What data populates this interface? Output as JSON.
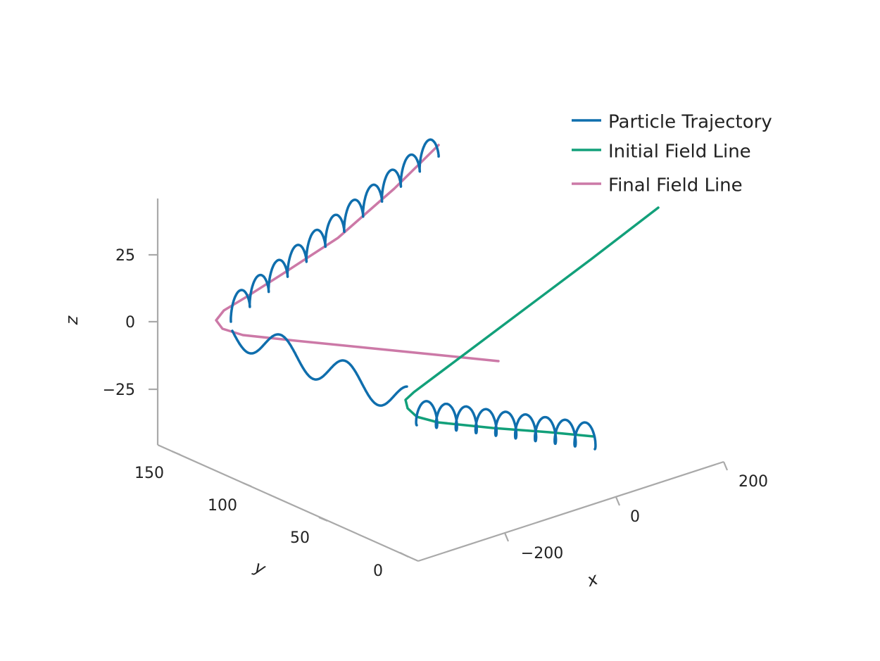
{
  "chart_data": {
    "type": "line",
    "title": "",
    "axes": {
      "x": {
        "label": "x",
        "ticks": [
          "−200",
          "0",
          "200"
        ],
        "range": [
          -300,
          300
        ]
      },
      "y": {
        "label": "y",
        "ticks": [
          "0",
          "50",
          "100",
          "150"
        ],
        "range": [
          -10,
          170
        ]
      },
      "z": {
        "label": "z",
        "ticks": [
          "−25",
          "0",
          "25"
        ],
        "range": [
          -45,
          45
        ]
      }
    },
    "grid": false,
    "legend_position": "top-right",
    "series": [
      {
        "name": "Particle Trajectory",
        "color": "#0f6ead"
      },
      {
        "name": "Initial Field Line",
        "color": "#12a07a"
      },
      {
        "name": "Final Field Line",
        "color": "#cc79a7"
      }
    ]
  }
}
